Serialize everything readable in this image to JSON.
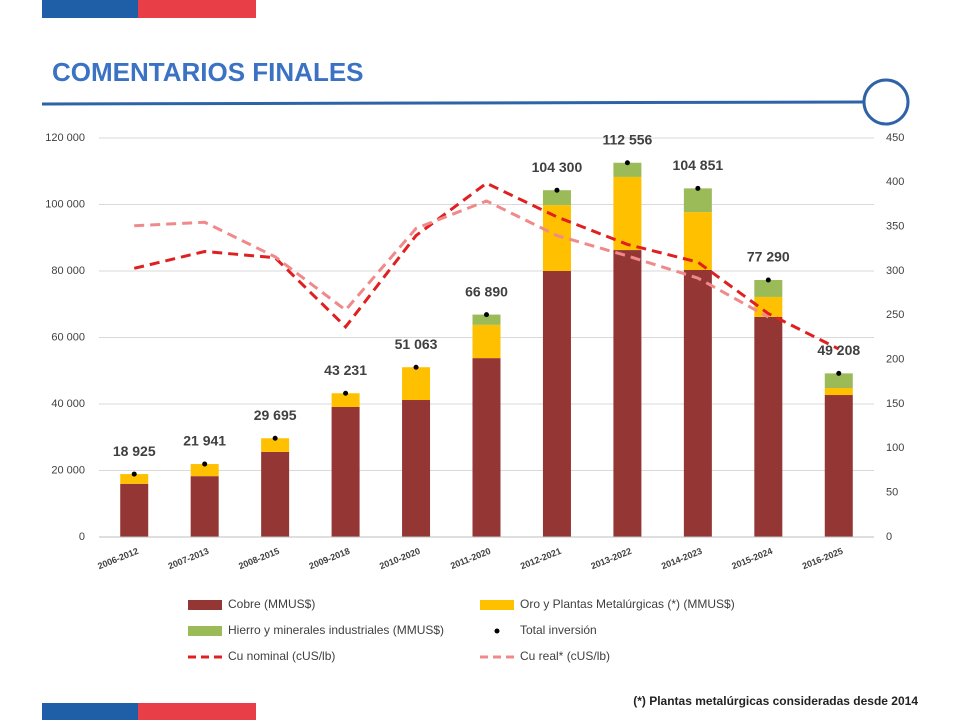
{
  "header": {
    "title": "COMENTARIOS FINALES"
  },
  "footnote": "(*) Plantas metalúrgicas consideradas desde 2014",
  "chart_data": {
    "type": "bar",
    "stacked": true,
    "categories": [
      "2006-2012",
      "2007-2013",
      "2008-2015",
      "2009-2018",
      "2010-2020",
      "2011-2020",
      "2012-2021",
      "2013-2022",
      "2014-2023",
      "2015-2024",
      "2016-2025"
    ],
    "series": [
      {
        "name": "Cobre (MMUS$)",
        "type": "bar",
        "color": "#943634",
        "values": [
          16000,
          18300,
          25600,
          39100,
          41200,
          53800,
          80000,
          86300,
          80300,
          66200,
          42700
        ]
      },
      {
        "name": "Oro y Plantas Metalúrgicas (*) (MMUS$)",
        "type": "bar",
        "color": "#ffc000",
        "values": [
          2925,
          3641,
          4095,
          4131,
          9863,
          10000,
          19800,
          22000,
          17400,
          6000,
          2100
        ]
      },
      {
        "name": "Hierro y minerales industriales (MMUS$)",
        "type": "bar",
        "color": "#9bbb59",
        "values": [
          0,
          0,
          0,
          0,
          0,
          3090,
          4500,
          4256,
          7151,
          5090,
          4408
        ]
      },
      {
        "name": "Total inversión",
        "type": "scatter",
        "color": "#000000",
        "values": [
          18925,
          21941,
          29695,
          43231,
          51063,
          66890,
          104300,
          112556,
          104851,
          77290,
          49208
        ],
        "value_labels": [
          "18 925",
          "21 941",
          "29 695",
          "43 231",
          "51 063",
          "66 890",
          "104 300",
          "112 556",
          "104 851",
          "77 290",
          "49 208"
        ]
      },
      {
        "name": "Cu nominal (cUS/lb)",
        "type": "line",
        "axis": "y2",
        "dashed": true,
        "color": "#e02020",
        "values": [
          303,
          322,
          315,
          237,
          340,
          399,
          361,
          330,
          310,
          252,
          212
        ]
      },
      {
        "name": "Cu real* (cUS/lb)",
        "type": "line",
        "axis": "y2",
        "dashed": true,
        "color": "#f08a8a",
        "values": [
          351,
          355,
          316,
          256,
          348,
          379,
          340,
          317,
          292,
          248,
          null
        ]
      }
    ],
    "ylim": [
      0,
      120000
    ],
    "yticks": [
      0,
      {
        "value": 20000,
        "label": "20 000"
      },
      {
        "value": 40000,
        "label": "40 000"
      },
      {
        "value": 60000,
        "label": "60 000"
      },
      {
        "value": 80000,
        "label": "80 000"
      },
      {
        "value": 100000,
        "label": "100 000"
      },
      {
        "value": 120000,
        "label": "120 000"
      }
    ],
    "y2lim": [
      0,
      450
    ],
    "y2ticks": [
      0,
      50,
      100,
      150,
      200,
      250,
      300,
      350,
      400,
      450
    ],
    "grid": true,
    "legend": "bottom"
  }
}
